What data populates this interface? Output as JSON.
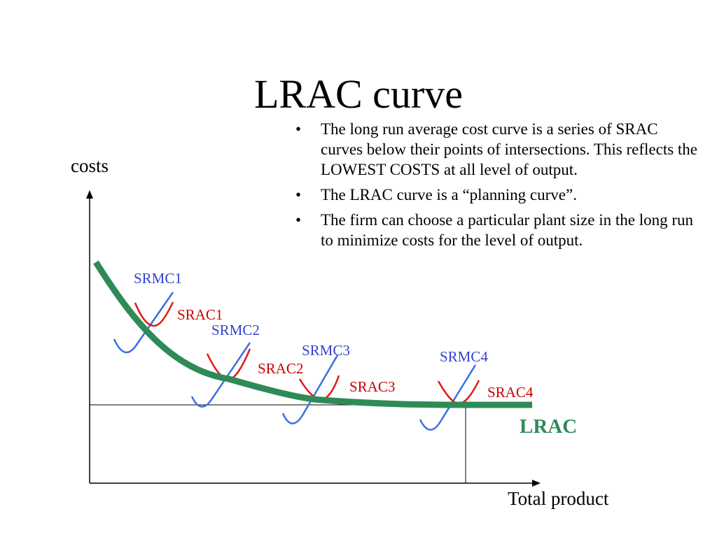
{
  "title": "LRAC curve",
  "bullets": [
    "The long run average cost curve is a series of SRAC curves below their points of intersections. This reflects the LOWEST COSTS at all level of output.",
    "The LRAC curve is a “planning curve”.",
    "The firm can choose a particular plant size in the long run to minimize costs for the level of output."
  ],
  "bullet_symbol": "•",
  "axes": {
    "y_label": "costs",
    "x_label": "Total product"
  },
  "curves": {
    "srmc": [
      "SRMC1",
      "SRMC2",
      "SRMC3",
      "SRMC4"
    ],
    "srac": [
      "SRAC1",
      "SRAC2",
      "SRAC3",
      "SRAC4"
    ],
    "lrac": "LRAC"
  },
  "colors": {
    "srmc": "#3b6fe0",
    "srac": "#e01a1a",
    "lrac": "#2e8b57",
    "axis": "#000000"
  }
}
